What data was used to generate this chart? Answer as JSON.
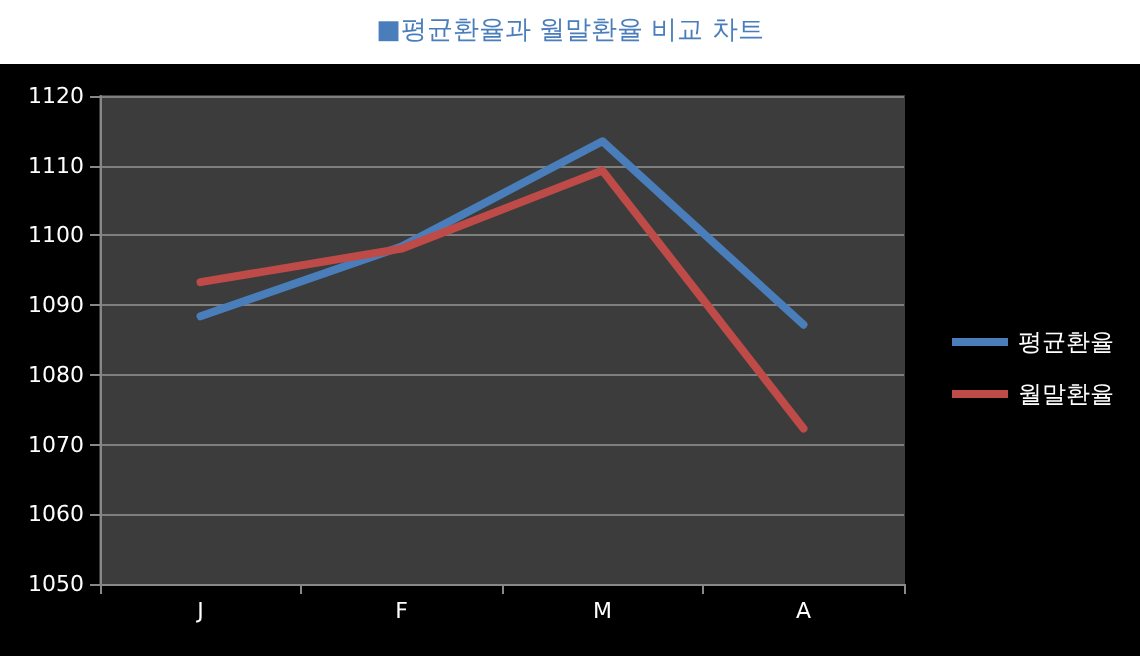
{
  "chart_data": {
    "type": "line",
    "title": "■평균환율과 월말환율 비교 차트",
    "categories": [
      "J",
      "F",
      "M",
      "A"
    ],
    "series": [
      {
        "name": "평균환율",
        "color": "#4a7ebb",
        "values": [
          1088.4,
          1098.4,
          1113.5,
          1087.2
        ]
      },
      {
        "name": "월말환율",
        "color": "#be4b48",
        "values": [
          1093.3,
          1098.1,
          1109.3,
          1072.3
        ]
      }
    ],
    "ylim": [
      1050,
      1120
    ],
    "yticks": [
      1050,
      1060,
      1070,
      1080,
      1090,
      1100,
      1110,
      1120
    ],
    "grid": "y",
    "legend": "right",
    "marker": "none",
    "line_style": "solid"
  }
}
